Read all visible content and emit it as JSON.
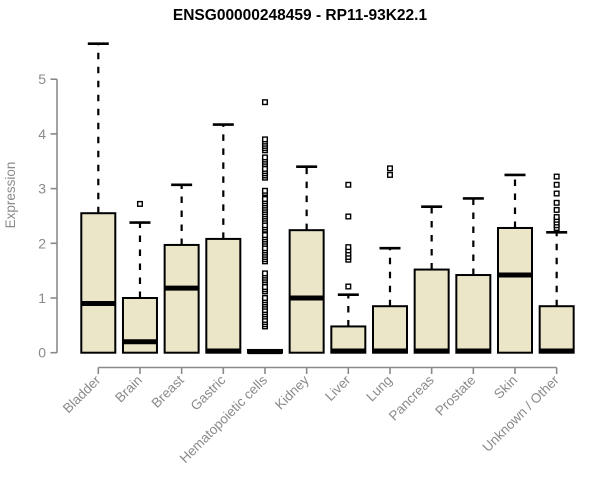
{
  "title": "ENSG00000248459 - RP11-93K22.1",
  "colors": {
    "background": "#ffffff",
    "box_fill": "#ece6c8",
    "box_border": "#000000",
    "median": "#000000",
    "whisker": "#000000",
    "outlier_border": "#000000",
    "axis": "#8a8a8a",
    "tick_label": "#8a8a8a",
    "title_color": "#000000"
  },
  "chart_data": {
    "type": "boxplot",
    "title": "ENSG00000248459 - RP11-93K22.1",
    "xlabel": "",
    "ylabel": "Expression",
    "ylim": [
      0,
      5.7
    ],
    "yticks": [
      0,
      1,
      2,
      3,
      4,
      5
    ],
    "grid": false,
    "legend": "none",
    "categories": [
      "Bladder",
      "Brain",
      "Breast",
      "Gastric",
      "Hematopoietic cells",
      "Kidney",
      "Liver",
      "Lung",
      "Pancreas",
      "Prostate",
      "Skin",
      "Unknown / Other"
    ],
    "series": [
      {
        "name": "Bladder",
        "q1": 0,
        "median": 0.9,
        "q3": 2.55,
        "whisker_low": 0,
        "whisker_high": 5.65,
        "outliers": []
      },
      {
        "name": "Brain",
        "q1": 0,
        "median": 0.2,
        "q3": 1.0,
        "whisker_low": 0,
        "whisker_high": 2.38,
        "outliers": [
          2.72
        ]
      },
      {
        "name": "Breast",
        "q1": 0,
        "median": 1.18,
        "q3": 1.97,
        "whisker_low": 0,
        "whisker_high": 3.07,
        "outliers": []
      },
      {
        "name": "Gastric",
        "q1": 0,
        "median": 0.03,
        "q3": 2.08,
        "whisker_low": 0,
        "whisker_high": 4.17,
        "outliers": []
      },
      {
        "name": "Hematopoietic cells",
        "q1": 0,
        "median": 0.02,
        "q3": 0.05,
        "whisker_low": 0,
        "whisker_high": 0.05,
        "outliers": [
          0.48,
          0.52,
          0.56,
          0.6,
          0.66,
          0.7,
          0.74,
          0.78,
          0.84,
          0.88,
          0.92,
          0.96,
          1.0,
          1.12,
          1.16,
          1.2,
          1.29,
          1.33,
          1.37,
          1.41,
          1.45,
          1.67,
          1.71,
          1.75,
          1.79,
          1.83,
          1.87,
          1.91,
          1.99,
          2.03,
          2.07,
          2.11,
          2.15,
          2.25,
          2.29,
          2.33,
          2.41,
          2.45,
          2.49,
          2.53,
          2.57,
          2.61,
          2.65,
          2.69,
          2.73,
          2.77,
          2.81,
          2.92,
          2.96,
          3.2,
          3.24,
          3.28,
          3.32,
          3.36,
          3.45,
          3.49,
          3.53,
          3.57,
          3.7,
          3.74,
          3.78,
          3.82,
          3.86,
          3.9,
          4.58
        ]
      },
      {
        "name": "Kidney",
        "q1": 0,
        "median": 1.0,
        "q3": 2.24,
        "whisker_low": 0,
        "whisker_high": 3.4,
        "outliers": []
      },
      {
        "name": "Liver",
        "q1": 0,
        "median": 0.03,
        "q3": 0.48,
        "whisker_low": 0,
        "whisker_high": 1.06,
        "outliers": [
          1.21,
          1.7,
          1.75,
          1.81,
          1.87,
          1.93,
          2.49,
          3.07
        ]
      },
      {
        "name": "Lung",
        "q1": 0,
        "median": 0.03,
        "q3": 0.85,
        "whisker_low": 0,
        "whisker_high": 1.91,
        "outliers": [
          3.25,
          3.37
        ]
      },
      {
        "name": "Pancreas",
        "q1": 0,
        "median": 0.03,
        "q3": 1.52,
        "whisker_low": 0,
        "whisker_high": 2.67,
        "outliers": []
      },
      {
        "name": "Prostate",
        "q1": 0,
        "median": 0.03,
        "q3": 1.42,
        "whisker_low": 0,
        "whisker_high": 2.82,
        "outliers": []
      },
      {
        "name": "Skin",
        "q1": 0,
        "median": 1.42,
        "q3": 2.28,
        "whisker_low": 0,
        "whisker_high": 3.25,
        "outliers": []
      },
      {
        "name": "Unknown / Other",
        "q1": 0,
        "median": 0.03,
        "q3": 0.85,
        "whisker_low": 0,
        "whisker_high": 2.2,
        "outliers": [
          2.28,
          2.33,
          2.38,
          2.43,
          2.48,
          2.61,
          2.74,
          2.91,
          3.07,
          3.22
        ]
      }
    ]
  }
}
